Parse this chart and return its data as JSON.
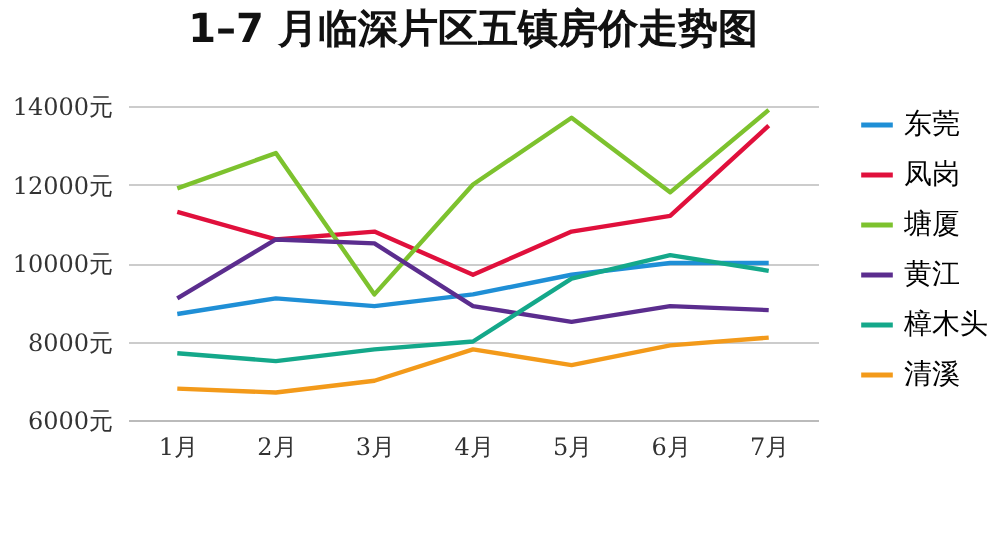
{
  "chart_data": {
    "type": "line",
    "title": "1–7 月临深片区五镇房价走势图",
    "categories": [
      "1月",
      "2月",
      "3月",
      "4月",
      "5月",
      "6月",
      "7月"
    ],
    "series": [
      {
        "name": "东莞",
        "color": "#1f8fd6",
        "values": [
          8700,
          9100,
          8900,
          9200,
          9700,
          10000,
          10000
        ]
      },
      {
        "name": "凤岗",
        "color": "#e0103c",
        "values": [
          11300,
          10600,
          10800,
          9700,
          10800,
          11200,
          13500
        ]
      },
      {
        "name": "塘厦",
        "color": "#7dc22e",
        "values": [
          11900,
          12800,
          9200,
          12000,
          13700,
          11800,
          13900
        ]
      },
      {
        "name": "黄江",
        "color": "#5b2d8e",
        "values": [
          9100,
          10600,
          10500,
          8900,
          8500,
          8900,
          8800
        ]
      },
      {
        "name": "樟木头",
        "color": "#14a88a",
        "values": [
          7700,
          7500,
          7800,
          8000,
          9600,
          10200,
          9800
        ]
      },
      {
        "name": "清溪",
        "color": "#f39a1a",
        "values": [
          6800,
          6700,
          7000,
          7800,
          7400,
          7900,
          8100
        ]
      }
    ],
    "ylim": [
      6000,
      14000
    ],
    "yticks": [
      {
        "value": 6000,
        "label": "6000元"
      },
      {
        "value": 8000,
        "label": "8000元"
      },
      {
        "value": 10000,
        "label": "10000元"
      },
      {
        "value": 12000,
        "label": "12000元"
      },
      {
        "value": 14000,
        "label": "14000元"
      }
    ],
    "grid": "y",
    "legend": "right",
    "marker": "none",
    "line_style": "solid"
  }
}
